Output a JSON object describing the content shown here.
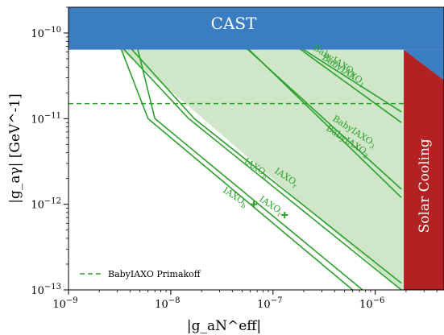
{
  "chart_data": {
    "type": "line",
    "xscale": "log",
    "yscale": "log",
    "xlim": [
      1e-09,
      4.7e-06
    ],
    "ylim": [
      1e-13,
      2e-10
    ],
    "xlabel": "|g_aN^eff|",
    "ylabel": "|g_aγ| [GeV^-1]",
    "x_ticks": [
      {
        "value": 1e-09,
        "mantissa": "10",
        "exp": "−9"
      },
      {
        "value": 1e-08,
        "mantissa": "10",
        "exp": "−8"
      },
      {
        "value": 1e-07,
        "mantissa": "10",
        "exp": "−7"
      },
      {
        "value": 1e-06,
        "mantissa": "10",
        "exp": "−6"
      }
    ],
    "y_ticks": [
      {
        "value": 1e-13,
        "mantissa": "10",
        "exp": "−13"
      },
      {
        "value": 1e-12,
        "mantissa": "10",
        "exp": "−12"
      },
      {
        "value": 1e-11,
        "mantissa": "10",
        "exp": "−11"
      },
      {
        "value": 1e-10,
        "mantissa": "10",
        "exp": "−10"
      }
    ],
    "regions": [
      {
        "name": "CAST",
        "label": "CAST",
        "color": "#3b7dc3",
        "y_min": 6.4e-11
      },
      {
        "name": "Solar Cooling",
        "label": "Solar Cooling",
        "color": "#b22222",
        "x_min": 1.9e-06
      }
    ],
    "shaded_regions": [
      {
        "name": "BabyIAXO",
        "color": "#e6f2e1",
        "boundary": [
          [
            1e-09,
            2e-10
          ],
          [
            3e-08,
            1.5e-11
          ],
          [
            1.8e-06,
            1e-13
          ]
        ]
      },
      {
        "name": "IAXO",
        "color": "#cfe6c8",
        "boundary": [
          [
            1e-09,
            2e-10
          ],
          [
            1.4e-08,
            1.5e-11
          ],
          [
            1.8e-06,
            1e-13
          ]
        ]
      }
    ],
    "series": [
      {
        "name": "BabyIAXO_0",
        "label": "BabyIAXO0",
        "points": [
          [
            6.5e-08,
            1.5e-10
          ],
          [
            1.8e-06,
            1.2e-11
          ]
        ]
      },
      {
        "name": "BabyIAXO_1",
        "label": "BabyIAXO1",
        "points": [
          [
            7e-08,
            1.5e-10
          ],
          [
            1.8e-06,
            9e-12
          ]
        ]
      },
      {
        "name": "BabyIAXO_3",
        "label": "BabyIAXO3",
        "points": [
          [
            2.6e-08,
            1.5e-10
          ],
          [
            1.8e-06,
            1.5e-12
          ]
        ]
      },
      {
        "name": "BabyIAXO_2",
        "label": "BabyIAXO2",
        "points": [
          [
            2.8e-08,
            1.5e-10
          ],
          [
            1.8e-06,
            1.2e-12
          ]
        ]
      },
      {
        "name": "IAXO_b_upper",
        "label": "IAXOb",
        "points": [
          [
            1.8e-09,
            1.5e-10
          ],
          [
            1.5e-08,
            1e-11
          ],
          [
            1.8e-06,
            1e-13
          ]
        ]
      },
      {
        "name": "IAXO_r_upper",
        "label": "IAXOr",
        "points": [
          [
            2.2e-09,
            1.5e-10
          ],
          [
            1.7e-08,
            1e-11
          ],
          [
            1.8e-06,
            1.2e-13
          ]
        ]
      },
      {
        "name": "IAXO_b_lower",
        "label": "IAXOb",
        "points": [
          [
            2.5e-09,
            1.5e-10
          ],
          [
            6e-09,
            1e-11
          ],
          [
            6e-07,
            1e-13
          ]
        ]
      },
      {
        "name": "IAXO_r_lower",
        "label": "IAXOr",
        "points": [
          [
            4e-09,
            1.5e-10
          ],
          [
            7e-09,
            1e-11
          ],
          [
            7.5e-07,
            1e-13
          ]
        ]
      }
    ],
    "hline": {
      "name": "BabyIAXO Primakoff",
      "label": "BabyIAXO Primakoff",
      "y": 1.5e-11
    },
    "markers": [
      {
        "name": "IAXOb",
        "x": 6.5e-08,
        "y": 1e-12
      },
      {
        "name": "IAXOr",
        "x": 1.3e-07,
        "y": 7.5e-13
      }
    ],
    "legend": {
      "placement": "bottom-left",
      "entries": [
        "BabyIAXO Primakoff"
      ]
    },
    "grid": false
  }
}
